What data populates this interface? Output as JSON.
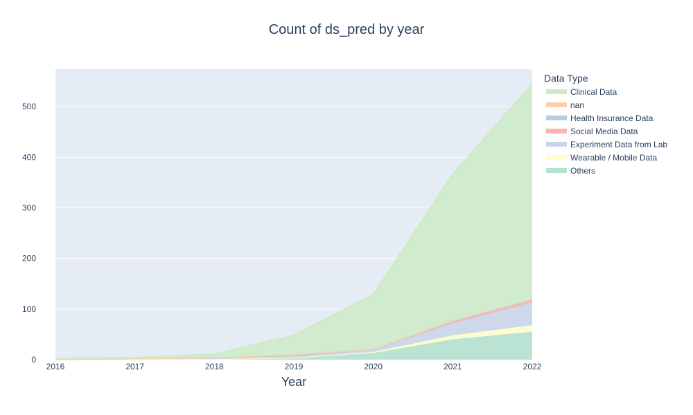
{
  "chart_data": {
    "type": "area",
    "stacked": true,
    "title": "Count of ds_pred by year",
    "xlabel": "Year",
    "ylabel": "",
    "x": [
      2016,
      2017,
      2018,
      2019,
      2020,
      2021,
      2022
    ],
    "xlim": [
      2016,
      2022
    ],
    "ylim": [
      0,
      574
    ],
    "yticks": [
      0,
      100,
      200,
      300,
      400,
      500
    ],
    "grid": true,
    "legend": {
      "title": "Data Type",
      "placement": "top-right, outside plot"
    },
    "plot_background": "#e5ecf6",
    "series": [
      {
        "name": "Others",
        "color": "#b3e2cd",
        "values": [
          0,
          1,
          1,
          3,
          13,
          40,
          55
        ]
      },
      {
        "name": "Wearable / Mobile Data",
        "color": "#ffffcc",
        "values": [
          0,
          0,
          0,
          1,
          2,
          8,
          13
        ]
      },
      {
        "name": "Experiment Data from Lab",
        "color": "#cbd5e8",
        "values": [
          1,
          1,
          2,
          3,
          5,
          24,
          45
        ]
      },
      {
        "name": "Social Media Data",
        "color": "#fbb4ae",
        "values": [
          0,
          0,
          1,
          2,
          1,
          3,
          4
        ]
      },
      {
        "name": "Health Insurance Data",
        "color": "#b3cde3",
        "values": [
          0,
          0,
          0,
          0,
          0,
          1,
          1
        ]
      },
      {
        "name": "nan",
        "color": "#fdcdac",
        "values": [
          0,
          0,
          0,
          1,
          0,
          1,
          2
        ]
      },
      {
        "name": "Clinical Data",
        "color": "#ccebc5",
        "values": [
          1,
          2,
          7,
          38,
          108,
          290,
          425
        ]
      }
    ],
    "legend_order": [
      "Clinical Data",
      "nan",
      "Health Insurance Data",
      "Social Media Data",
      "Experiment Data from Lab",
      "Wearable / Mobile Data",
      "Others"
    ]
  }
}
